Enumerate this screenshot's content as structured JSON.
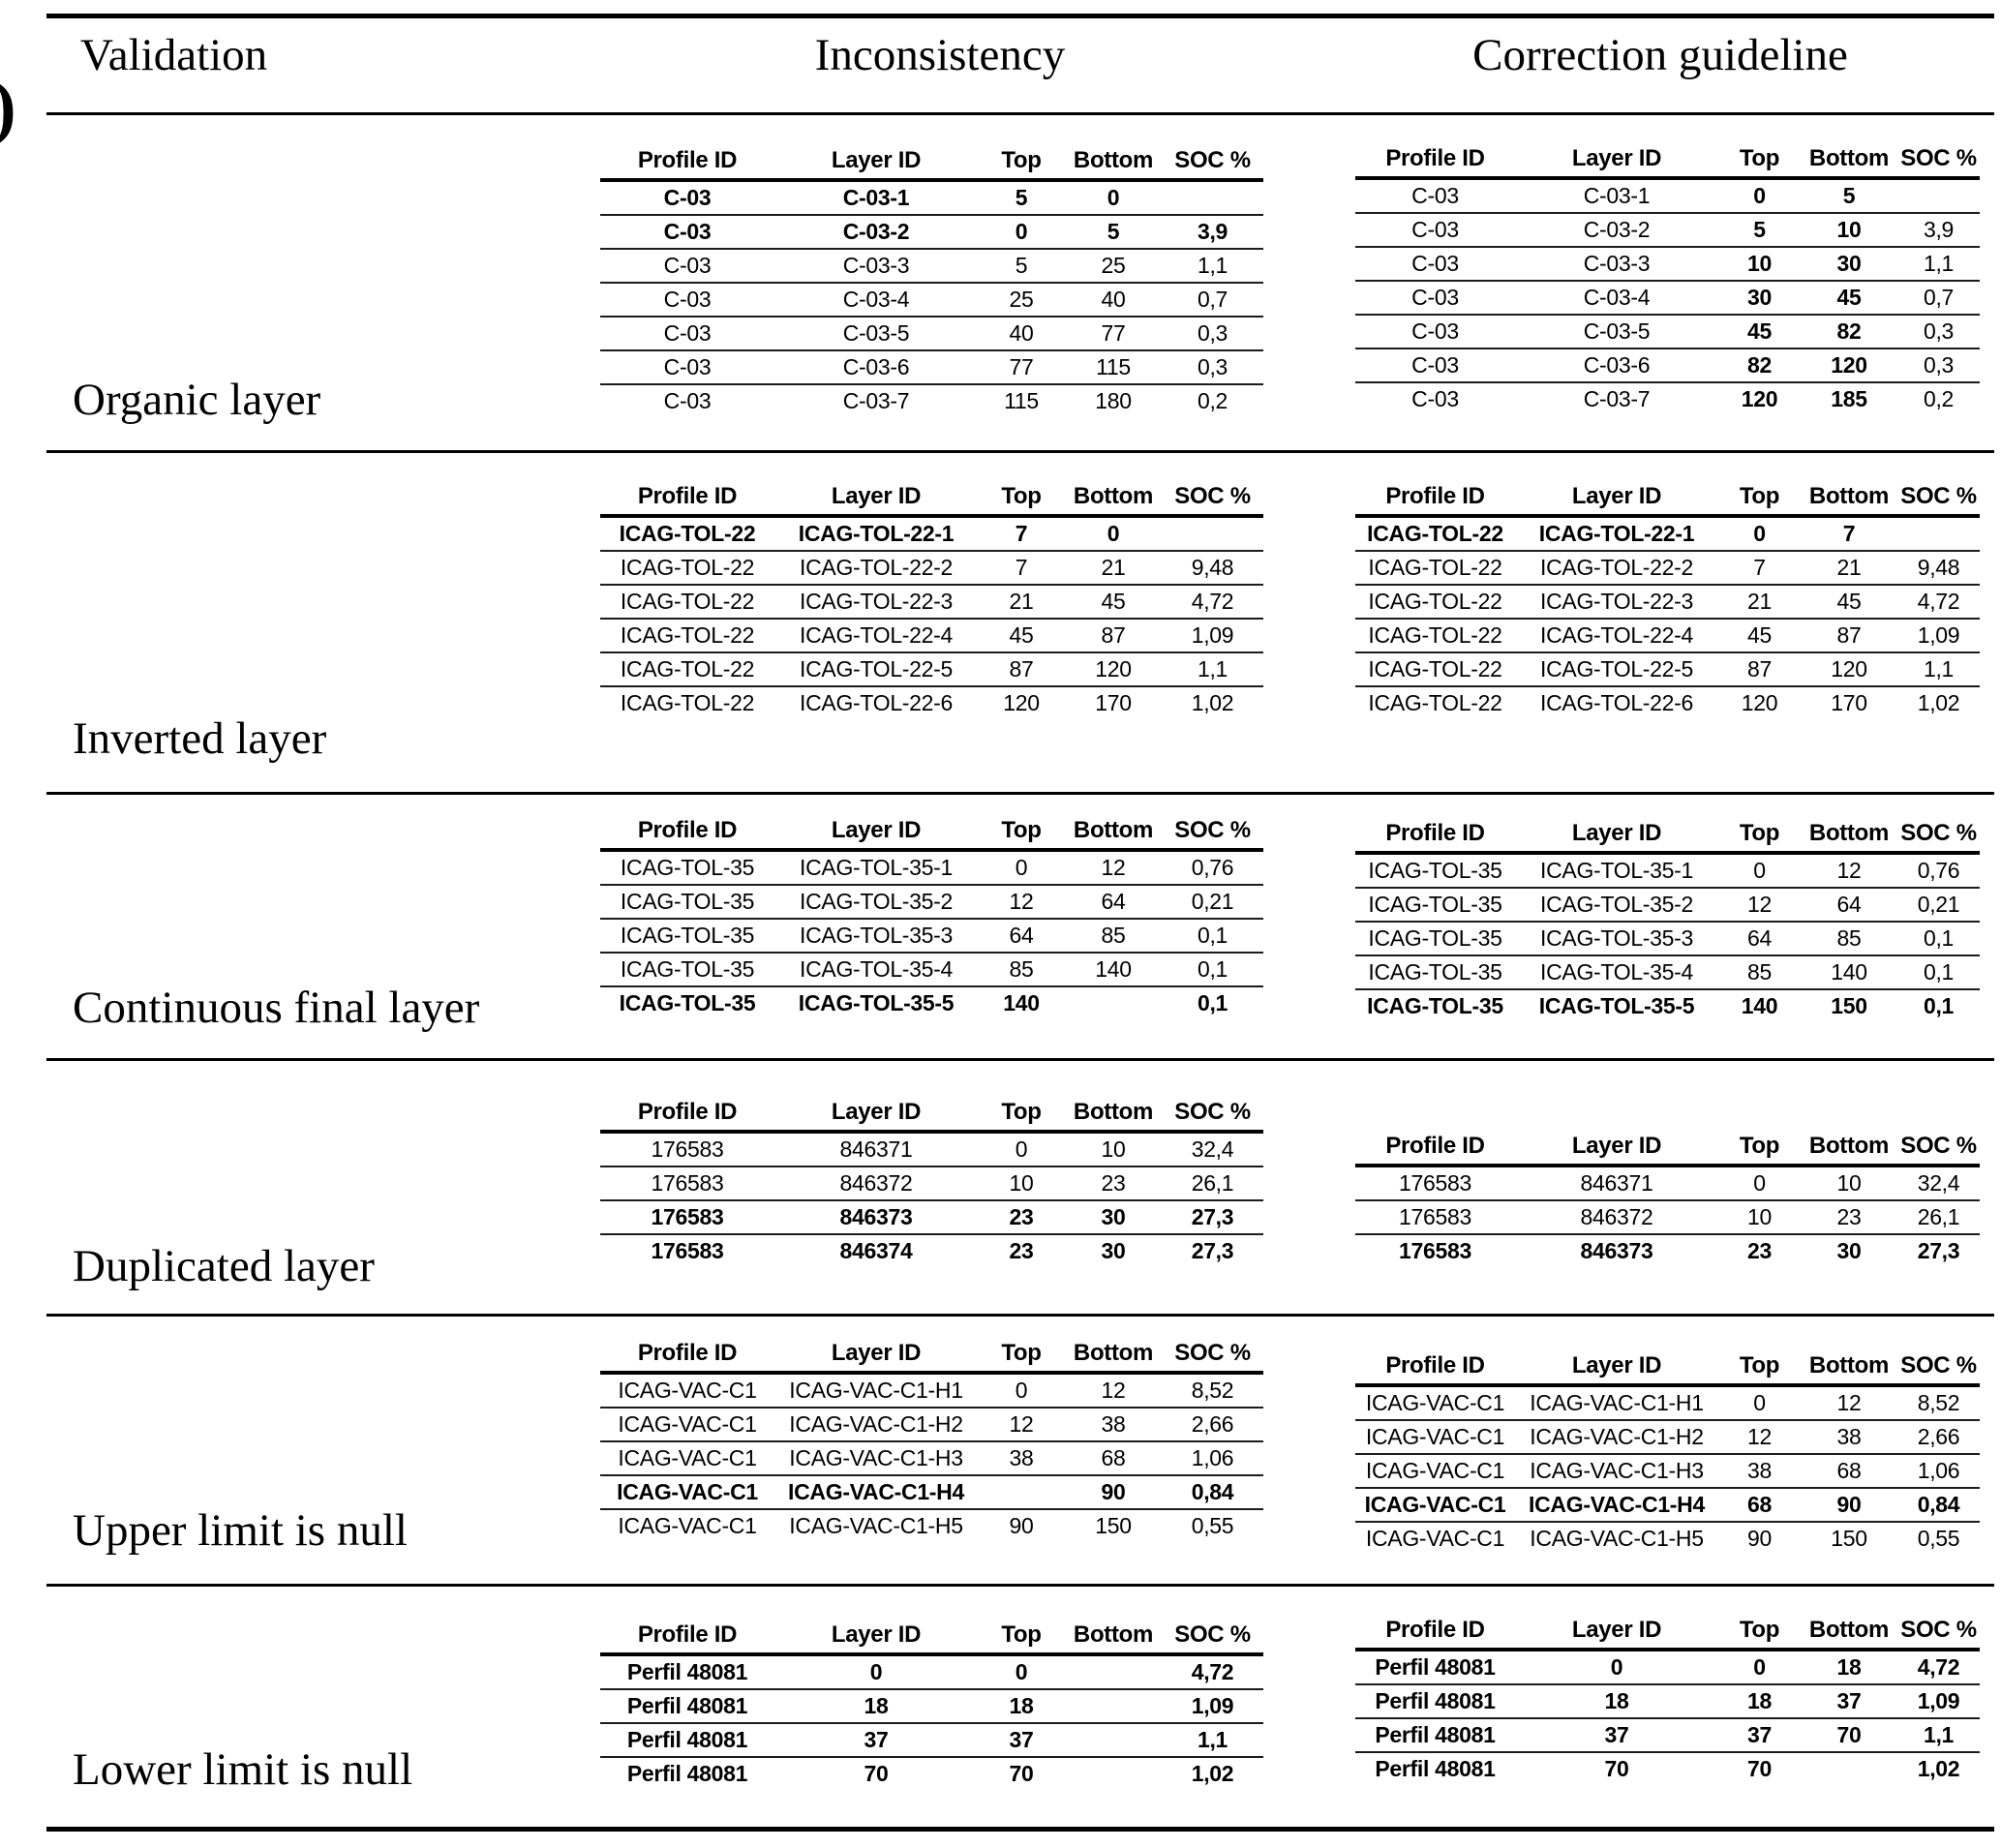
{
  "header": {
    "validation": "Validation",
    "inconsistency": "Inconsistency",
    "correction": "Correction guideline",
    "stray_mark": ")"
  },
  "table_columns": [
    "Profile ID",
    "Layer ID",
    "Top",
    "Bottom",
    "SOC %"
  ],
  "sections": [
    {
      "label": "Organic layer",
      "inconsistency": [
        {
          "c": [
            "C-03",
            "C-03-1",
            "5",
            "0",
            ""
          ],
          "b": true
        },
        {
          "c": [
            "C-03",
            "C-03-2",
            "0",
            "5",
            "3,9"
          ],
          "b": true
        },
        {
          "c": [
            "C-03",
            "C-03-3",
            "5",
            "25",
            "1,1"
          ]
        },
        {
          "c": [
            "C-03",
            "C-03-4",
            "25",
            "40",
            "0,7"
          ]
        },
        {
          "c": [
            "C-03",
            "C-03-5",
            "40",
            "77",
            "0,3"
          ]
        },
        {
          "c": [
            "C-03",
            "C-03-6",
            "77",
            "115",
            "0,3"
          ]
        },
        {
          "c": [
            "C-03",
            "C-03-7",
            "115",
            "180",
            "0,2"
          ]
        }
      ],
      "correction": [
        {
          "c": [
            "C-03",
            "C-03-1",
            "0",
            "5",
            ""
          ],
          "b": [
            2,
            3
          ]
        },
        {
          "c": [
            "C-03",
            "C-03-2",
            "5",
            "10",
            "3,9"
          ],
          "b": [
            2,
            3
          ]
        },
        {
          "c": [
            "C-03",
            "C-03-3",
            "10",
            "30",
            "1,1"
          ],
          "b": [
            2,
            3
          ]
        },
        {
          "c": [
            "C-03",
            "C-03-4",
            "30",
            "45",
            "0,7"
          ],
          "b": [
            2,
            3
          ]
        },
        {
          "c": [
            "C-03",
            "C-03-5",
            "45",
            "82",
            "0,3"
          ],
          "b": [
            2,
            3
          ]
        },
        {
          "c": [
            "C-03",
            "C-03-6",
            "82",
            "120",
            "0,3"
          ],
          "b": [
            2,
            3
          ]
        },
        {
          "c": [
            "C-03",
            "C-03-7",
            "120",
            "185",
            "0,2"
          ],
          "b": [
            2,
            3
          ]
        }
      ]
    },
    {
      "label": "Inverted layer",
      "inconsistency": [
        {
          "c": [
            "ICAG-TOL-22",
            "ICAG-TOL-22-1",
            "7",
            "0",
            ""
          ],
          "b": true
        },
        {
          "c": [
            "ICAG-TOL-22",
            "ICAG-TOL-22-2",
            "7",
            "21",
            "9,48"
          ]
        },
        {
          "c": [
            "ICAG-TOL-22",
            "ICAG-TOL-22-3",
            "21",
            "45",
            "4,72"
          ]
        },
        {
          "c": [
            "ICAG-TOL-22",
            "ICAG-TOL-22-4",
            "45",
            "87",
            "1,09"
          ]
        },
        {
          "c": [
            "ICAG-TOL-22",
            "ICAG-TOL-22-5",
            "87",
            "120",
            "1,1"
          ]
        },
        {
          "c": [
            "ICAG-TOL-22",
            "ICAG-TOL-22-6",
            "120",
            "170",
            "1,02"
          ]
        }
      ],
      "correction": [
        {
          "c": [
            "ICAG-TOL-22",
            "ICAG-TOL-22-1",
            "0",
            "7",
            ""
          ],
          "b": true
        },
        {
          "c": [
            "ICAG-TOL-22",
            "ICAG-TOL-22-2",
            "7",
            "21",
            "9,48"
          ]
        },
        {
          "c": [
            "ICAG-TOL-22",
            "ICAG-TOL-22-3",
            "21",
            "45",
            "4,72"
          ]
        },
        {
          "c": [
            "ICAG-TOL-22",
            "ICAG-TOL-22-4",
            "45",
            "87",
            "1,09"
          ]
        },
        {
          "c": [
            "ICAG-TOL-22",
            "ICAG-TOL-22-5",
            "87",
            "120",
            "1,1"
          ]
        },
        {
          "c": [
            "ICAG-TOL-22",
            "ICAG-TOL-22-6",
            "120",
            "170",
            "1,02"
          ]
        }
      ]
    },
    {
      "label": "Continuous final layer",
      "inconsistency": [
        {
          "c": [
            "ICAG-TOL-35",
            "ICAG-TOL-35-1",
            "0",
            "12",
            "0,76"
          ]
        },
        {
          "c": [
            "ICAG-TOL-35",
            "ICAG-TOL-35-2",
            "12",
            "64",
            "0,21"
          ]
        },
        {
          "c": [
            "ICAG-TOL-35",
            "ICAG-TOL-35-3",
            "64",
            "85",
            "0,1"
          ]
        },
        {
          "c": [
            "ICAG-TOL-35",
            "ICAG-TOL-35-4",
            "85",
            "140",
            "0,1"
          ]
        },
        {
          "c": [
            "ICAG-TOL-35",
            "ICAG-TOL-35-5",
            "140",
            "",
            "0,1"
          ],
          "b": true
        }
      ],
      "correction": [
        {
          "c": [
            "ICAG-TOL-35",
            "ICAG-TOL-35-1",
            "0",
            "12",
            "0,76"
          ]
        },
        {
          "c": [
            "ICAG-TOL-35",
            "ICAG-TOL-35-2",
            "12",
            "64",
            "0,21"
          ]
        },
        {
          "c": [
            "ICAG-TOL-35",
            "ICAG-TOL-35-3",
            "64",
            "85",
            "0,1"
          ]
        },
        {
          "c": [
            "ICAG-TOL-35",
            "ICAG-TOL-35-4",
            "85",
            "140",
            "0,1"
          ]
        },
        {
          "c": [
            "ICAG-TOL-35",
            "ICAG-TOL-35-5",
            "140",
            "150",
            "0,1"
          ],
          "b": true
        }
      ]
    },
    {
      "label": "Duplicated layer",
      "inconsistency": [
        {
          "c": [
            "176583",
            "846371",
            "0",
            "10",
            "32,4"
          ]
        },
        {
          "c": [
            "176583",
            "846372",
            "10",
            "23",
            "26,1"
          ]
        },
        {
          "c": [
            "176583",
            "846373",
            "23",
            "30",
            "27,3"
          ],
          "b": true
        },
        {
          "c": [
            "176583",
            "846374",
            "23",
            "30",
            "27,3"
          ],
          "b": true
        }
      ],
      "correction": [
        {
          "c": [
            "176583",
            "846371",
            "0",
            "10",
            "32,4"
          ]
        },
        {
          "c": [
            "176583",
            "846372",
            "10",
            "23",
            "26,1"
          ]
        },
        {
          "c": [
            "176583",
            "846373",
            "23",
            "30",
            "27,3"
          ],
          "b": true
        }
      ]
    },
    {
      "label": "Upper limit is null",
      "inconsistency": [
        {
          "c": [
            "ICAG-VAC-C1",
            "ICAG-VAC-C1-H1",
            "0",
            "12",
            "8,52"
          ]
        },
        {
          "c": [
            "ICAG-VAC-C1",
            "ICAG-VAC-C1-H2",
            "12",
            "38",
            "2,66"
          ]
        },
        {
          "c": [
            "ICAG-VAC-C1",
            "ICAG-VAC-C1-H3",
            "38",
            "68",
            "1,06"
          ]
        },
        {
          "c": [
            "ICAG-VAC-C1",
            "ICAG-VAC-C1-H4",
            "",
            "90",
            "0,84"
          ],
          "b": true
        },
        {
          "c": [
            "ICAG-VAC-C1",
            "ICAG-VAC-C1-H5",
            "90",
            "150",
            "0,55"
          ]
        }
      ],
      "correction": [
        {
          "c": [
            "ICAG-VAC-C1",
            "ICAG-VAC-C1-H1",
            "0",
            "12",
            "8,52"
          ]
        },
        {
          "c": [
            "ICAG-VAC-C1",
            "ICAG-VAC-C1-H2",
            "12",
            "38",
            "2,66"
          ]
        },
        {
          "c": [
            "ICAG-VAC-C1",
            "ICAG-VAC-C1-H3",
            "38",
            "68",
            "1,06"
          ]
        },
        {
          "c": [
            "ICAG-VAC-C1",
            "ICAG-VAC-C1-H4",
            "68",
            "90",
            "0,84"
          ],
          "b": true
        },
        {
          "c": [
            "ICAG-VAC-C1",
            "ICAG-VAC-C1-H5",
            "90",
            "150",
            "0,55"
          ]
        }
      ]
    },
    {
      "label": "Lower limit is null",
      "inconsistency": [
        {
          "c": [
            "Perfil 48081",
            "0",
            "0",
            "",
            "4,72"
          ],
          "b": true
        },
        {
          "c": [
            "Perfil 48081",
            "18",
            "18",
            "",
            "1,09"
          ],
          "b": true
        },
        {
          "c": [
            "Perfil 48081",
            "37",
            "37",
            "",
            "1,1"
          ],
          "b": true
        },
        {
          "c": [
            "Perfil 48081",
            "70",
            "70",
            "",
            "1,02"
          ],
          "b": true
        }
      ],
      "correction": [
        {
          "c": [
            "Perfil 48081",
            "0",
            "0",
            "18",
            "4,72"
          ],
          "b": true
        },
        {
          "c": [
            "Perfil 48081",
            "18",
            "18",
            "37",
            "1,09"
          ],
          "b": true
        },
        {
          "c": [
            "Perfil 48081",
            "37",
            "37",
            "70",
            "1,1"
          ],
          "b": true
        },
        {
          "c": [
            "Perfil 48081",
            "70",
            "70",
            "",
            "1,02"
          ],
          "b": true
        }
      ]
    }
  ]
}
